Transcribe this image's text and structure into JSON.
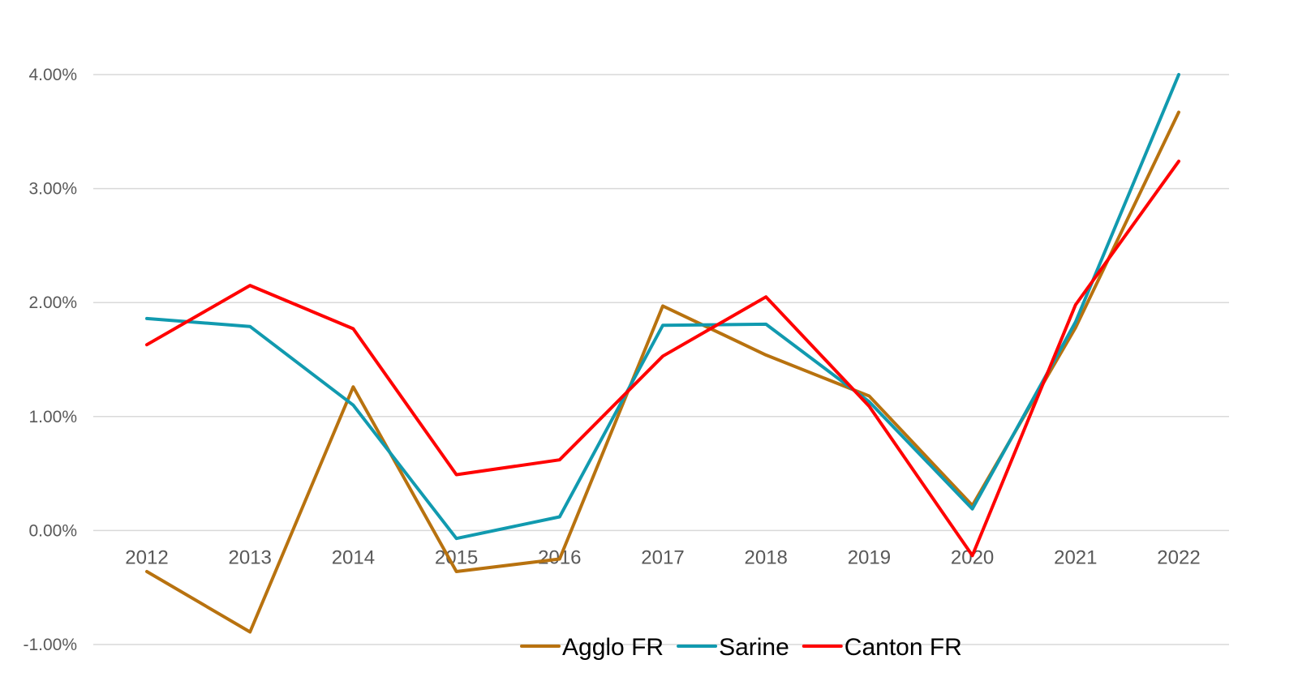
{
  "chart_data": {
    "type": "line",
    "title": "",
    "xlabel": "",
    "ylabel": "",
    "x": [
      "2012",
      "2013",
      "2014",
      "2015",
      "2016",
      "2017",
      "2018",
      "2019",
      "2020",
      "2021",
      "2022"
    ],
    "y_ticks": [
      {
        "value": -0.01,
        "label": "-1.00%"
      },
      {
        "value": 0.0,
        "label": "0.00%"
      },
      {
        "value": 0.01,
        "label": "1.00%"
      },
      {
        "value": 0.02,
        "label": "2.00%"
      },
      {
        "value": 0.03,
        "label": "3.00%"
      },
      {
        "value": 0.04,
        "label": "4.00%"
      }
    ],
    "ylim": [
      -0.01,
      0.04
    ],
    "grid": true,
    "legend_position": "bottom",
    "series": [
      {
        "name": "Agglo FR",
        "color": "#b8720f",
        "values": [
          -0.0036,
          -0.0089,
          0.0126,
          -0.0036,
          -0.0025,
          0.0197,
          0.0154,
          0.0118,
          0.0022,
          0.0178,
          0.0367
        ]
      },
      {
        "name": "Sarine",
        "color": "#119aaf",
        "values": [
          0.0186,
          0.0179,
          0.011,
          -0.0007,
          0.0012,
          0.018,
          0.0181,
          0.0113,
          0.0019,
          0.0183,
          0.04
        ]
      },
      {
        "name": "Canton FR",
        "color": "#ff0000",
        "values": [
          0.0163,
          0.0215,
          0.0177,
          0.0049,
          0.0062,
          0.0153,
          0.0205,
          0.0109,
          -0.0022,
          0.0198,
          0.0324
        ]
      }
    ]
  }
}
